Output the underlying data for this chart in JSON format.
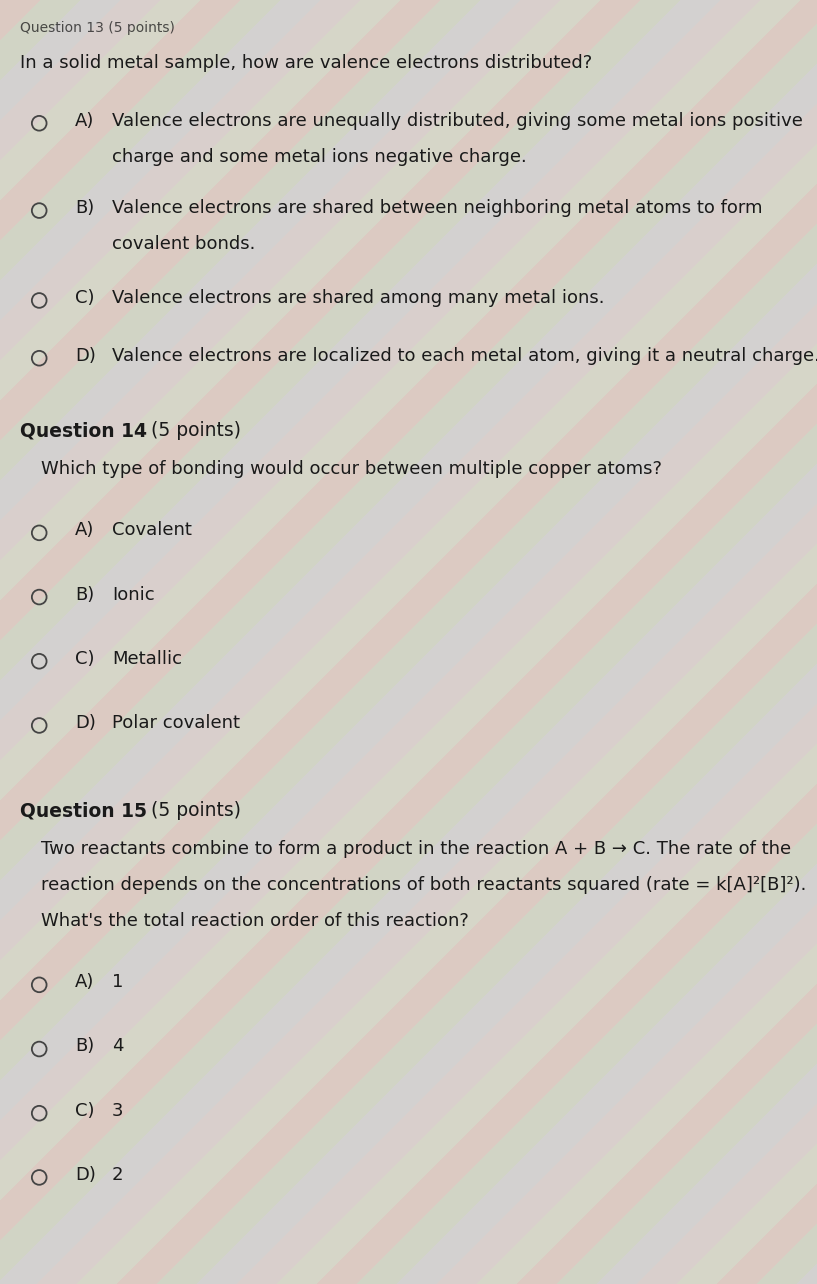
{
  "bg_color_base": "#d8d4cc",
  "header_partial": "Question 13 (5 points)",
  "q13_question": "In a solid metal sample, how are valence electrons distributed?",
  "q13_options": [
    [
      "A)",
      "Valence electrons are unequally distributed, giving some metal ions positive\ncharge and some metal ions negative charge."
    ],
    [
      "B)",
      "Valence electrons are shared between neighboring metal atoms to form\ncovalent bonds."
    ],
    [
      "C)",
      "Valence electrons are shared among many metal ions."
    ],
    [
      "D)",
      "Valence electrons are localized to each metal atom, giving it a neutral charge."
    ]
  ],
  "q14_header": "Question 14",
  "q14_points": " (5 points)",
  "q14_question": "Which type of bonding would occur between multiple copper atoms?",
  "q14_options": [
    [
      "A)",
      "Covalent"
    ],
    [
      "B)",
      "Ionic"
    ],
    [
      "C)",
      "Metallic"
    ],
    [
      "D)",
      "Polar covalent"
    ]
  ],
  "q15_header": "Question 15",
  "q15_points": " (5 points)",
  "q15_question": "Two reactants combine to form a product in the reaction A + B → C. The rate of the\nreaction depends on the concentrations of both reactants squared (rate = k[A]²[B]²).\nWhat's the total reaction order of this reaction?",
  "q15_options": [
    [
      "A)",
      "1"
    ],
    [
      "B)",
      "4"
    ],
    [
      "C)",
      "3"
    ],
    [
      "D)",
      "2"
    ]
  ],
  "text_color": "#1a1a1a",
  "circle_color": "#444444",
  "font_size_question": 13.0,
  "font_size_option": 13.0,
  "font_size_header": 13.5,
  "font_size_partial": 10.0
}
